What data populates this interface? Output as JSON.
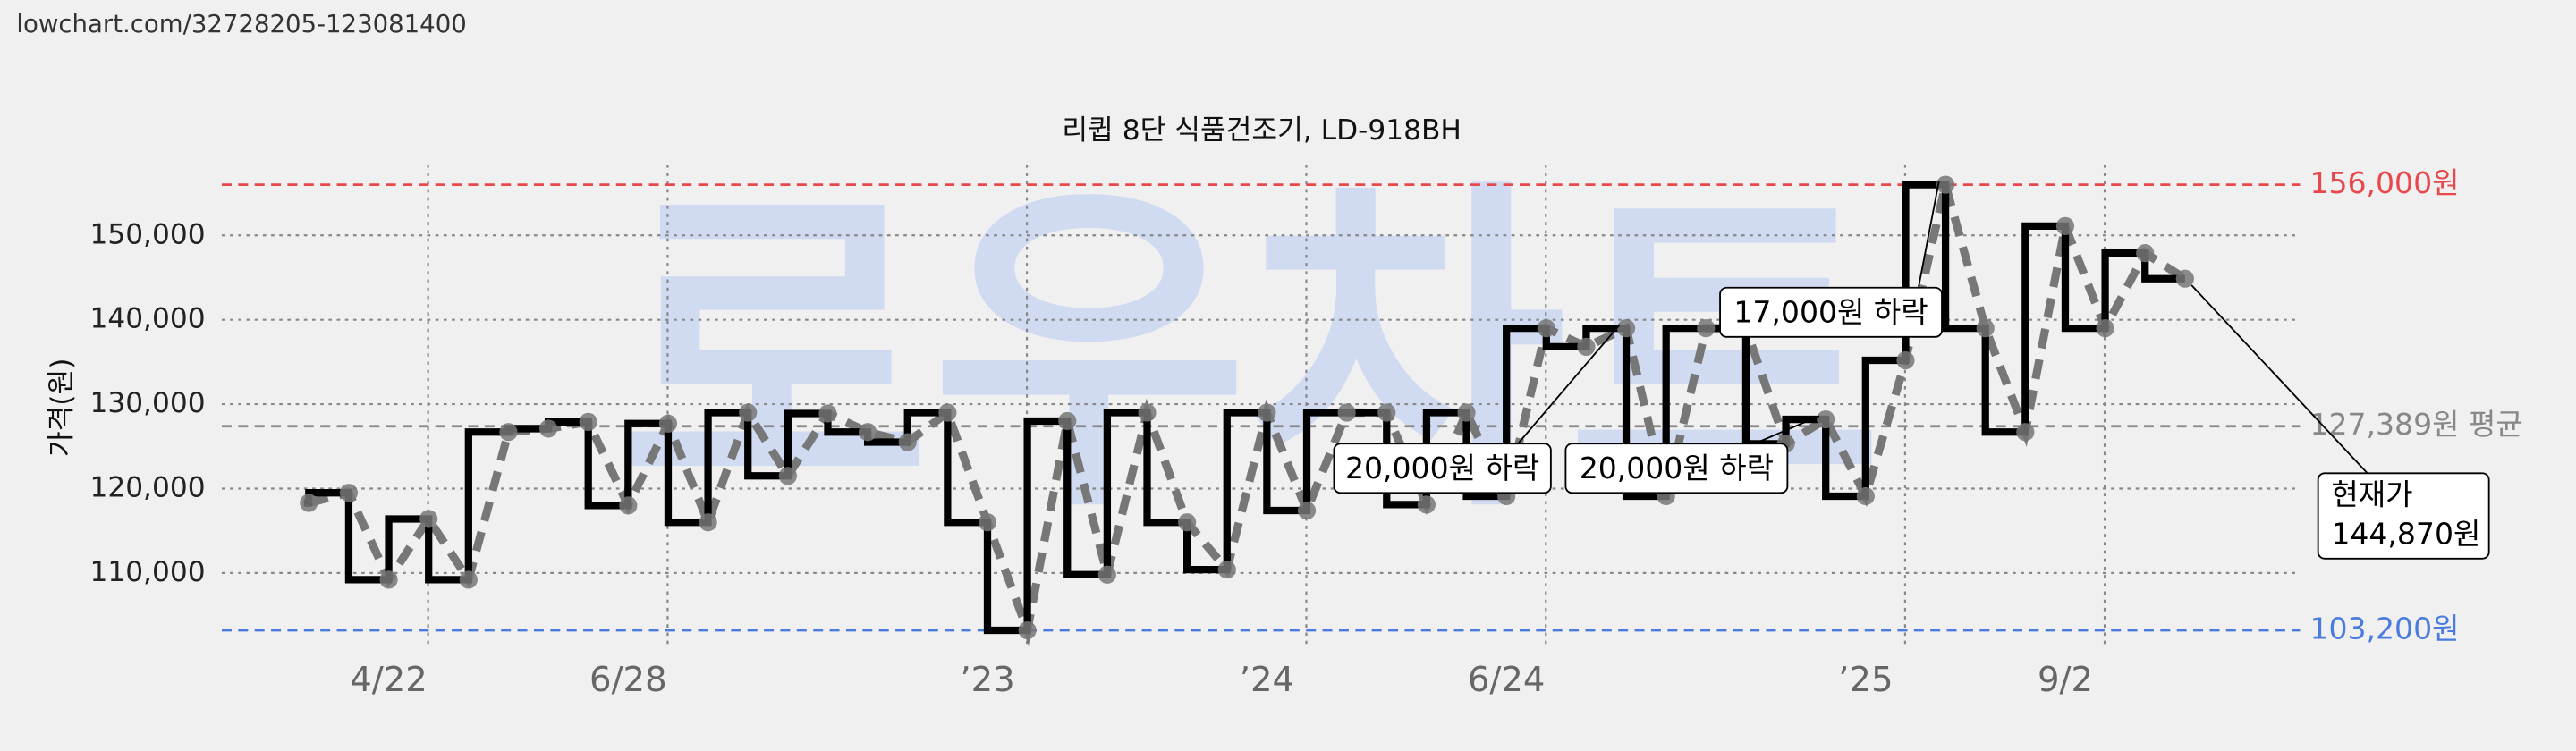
{
  "header": {
    "url": "lowchart.com/32728205-123081400"
  },
  "chart_data": {
    "type": "step-line",
    "title": "리큅 8단 식품건조기, LD-918BH",
    "ylabel": "가격(원)",
    "watermark": "로우차트",
    "categories": [
      null,
      null,
      "4/22",
      null,
      null,
      null,
      null,
      null,
      "6/28",
      null,
      null,
      null,
      null,
      null,
      null,
      null,
      null,
      "’23",
      null,
      null,
      null,
      null,
      null,
      null,
      "’24",
      null,
      null,
      null,
      null,
      null,
      "6/24",
      null,
      null,
      null,
      null,
      null,
      null,
      null,
      null,
      "’25",
      null,
      null,
      null,
      null,
      "9/2",
      null,
      null,
      null
    ],
    "series": [
      {
        "color": "#000000",
        "values": [
          118300,
          119500,
          109200,
          116400,
          109200,
          126700,
          127100,
          127900,
          118000,
          127700,
          116000,
          129000,
          121500,
          128900,
          126700,
          125500,
          129000,
          116000,
          103200,
          128000,
          109800,
          129000,
          116000,
          110400,
          129000,
          117400,
          129000,
          129000,
          118100,
          129000,
          119100,
          139000,
          136800,
          139000,
          119100,
          139000,
          139000,
          125300,
          128200,
          119100,
          135200,
          156000,
          139000,
          126700,
          151100,
          139000,
          147900,
          144870
        ]
      }
    ],
    "ylim": [
      101000,
      158400
    ],
    "yticks": [
      {
        "value": 110000,
        "label": "110,000"
      },
      {
        "value": 120000,
        "label": "120,000"
      },
      {
        "value": 130000,
        "label": "130,000"
      },
      {
        "value": 140000,
        "label": "140,000"
      },
      {
        "value": 150000,
        "label": "150,000"
      }
    ],
    "grid": true,
    "reference_lines": [
      {
        "value": 156000,
        "label": "156,000원",
        "color": "#e8474b"
      },
      {
        "value": 127389,
        "label": "127,389원 평균",
        "color": "#888888"
      },
      {
        "value": 103200,
        "label": "103,200원",
        "color": "#4a7be0"
      }
    ],
    "annotations": [
      {
        "text": "20,000원 하락",
        "index": 33
      },
      {
        "text": "20,000원 하락",
        "index": 38
      },
      {
        "text": "17,000원 하락",
        "index": 41
      },
      {
        "text": [
          "현재가",
          "144,870원"
        ],
        "index": 47
      }
    ]
  }
}
